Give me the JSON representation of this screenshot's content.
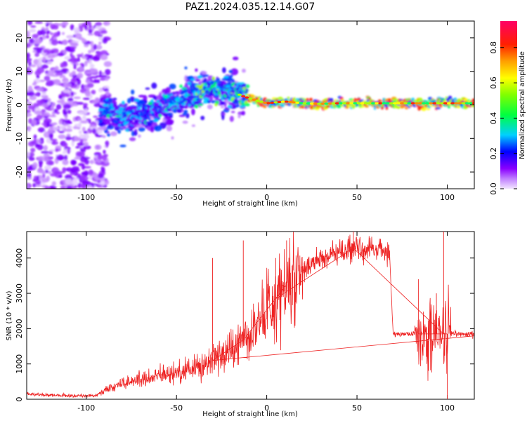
{
  "title": "PAZ1.2024.035.12.14.G07",
  "chart_data": [
    {
      "type": "heatmap",
      "xlabel": "Height of straight line (km)",
      "ylabel": "Frequency (Hz)",
      "xlim": [
        -133,
        115
      ],
      "ylim": [
        -25,
        25
      ],
      "xticks": [
        -100,
        -50,
        0,
        50,
        100
      ],
      "yticks": [
        -20,
        -10,
        0,
        10,
        20
      ],
      "colorbar": {
        "label": "Normalized spectral amplitude",
        "range": [
          0,
          0.95
        ],
        "ticks": [
          0.0,
          0.2,
          0.4,
          0.6,
          0.8
        ]
      },
      "ridge": {
        "x": [
          -90,
          -80,
          -70,
          -60,
          -50,
          -40,
          -30,
          -20,
          -10,
          0,
          10,
          20,
          30,
          40,
          50,
          60,
          70,
          80,
          90,
          100,
          110
        ],
        "frequency": [
          -1,
          -4,
          -3,
          -2,
          1,
          3,
          5,
          4,
          2,
          0.5,
          1,
          0.5,
          0.3,
          0.5,
          0.5,
          0.5,
          0.5,
          0.5,
          0.5,
          0.5,
          0.5
        ]
      }
    },
    {
      "type": "line",
      "xlabel": "Height of straight line (km)",
      "ylabel": "SNR (10 * v/v)",
      "xlim": [
        -133,
        115
      ],
      "ylim": [
        0,
        4750
      ],
      "xticks": [
        -100,
        -50,
        0,
        50,
        100
      ],
      "yticks": [
        0,
        1000,
        2000,
        3000,
        4000
      ],
      "color": "#ee2222",
      "envelope": {
        "x": [
          -133,
          -110,
          -95,
          -90,
          -80,
          -70,
          -60,
          -50,
          -40,
          -30,
          -20,
          -10,
          0,
          10,
          20,
          30,
          40,
          50,
          60,
          68,
          70,
          80,
          90,
          100,
          110,
          115
        ],
        "y": [
          150,
          100,
          100,
          250,
          450,
          550,
          650,
          750,
          900,
          1100,
          1400,
          1800,
          2500,
          3200,
          3700,
          4000,
          4200,
          4300,
          4250,
          4200,
          1850,
          1850,
          1850,
          1850,
          1850,
          1850
        ]
      },
      "spikes": [
        {
          "x": -30,
          "y": 4000
        },
        {
          "x": -13,
          "y": 4500
        },
        {
          "x": 11,
          "y": 4500
        },
        {
          "x": 5,
          "y": 4000
        },
        {
          "x": 48,
          "y": 4750
        },
        {
          "x": 98,
          "y": 4750
        },
        {
          "x": 84,
          "y": 3400
        },
        {
          "x": 94,
          "y": 3000
        },
        {
          "x": 100,
          "y": 0
        }
      ]
    }
  ]
}
